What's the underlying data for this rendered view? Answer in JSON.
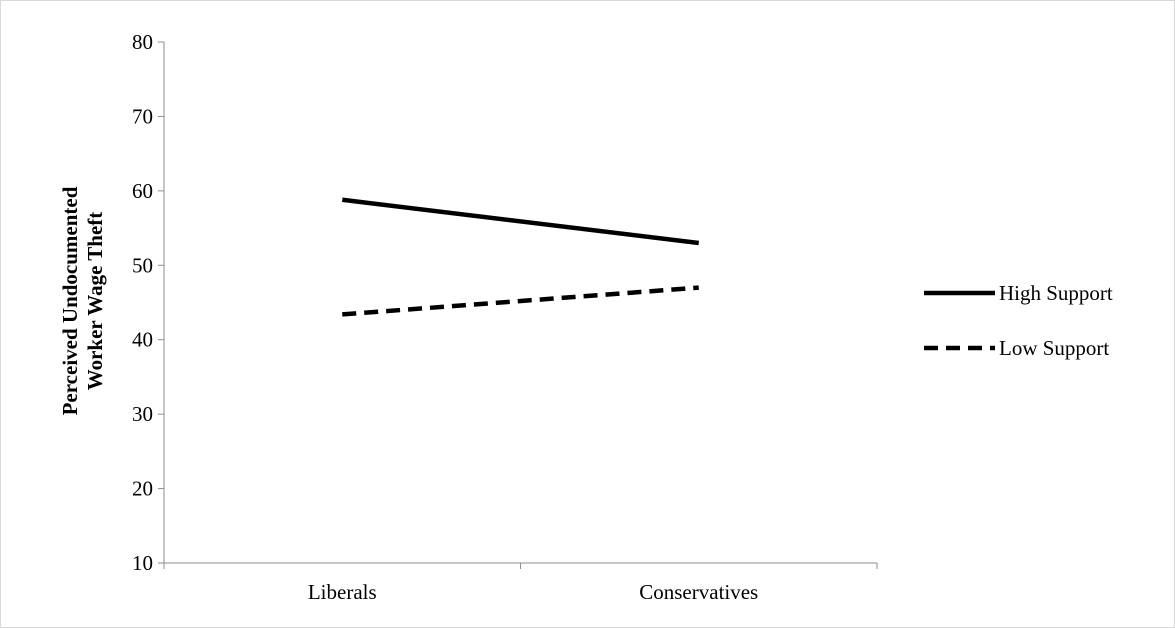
{
  "chart_data": {
    "type": "line",
    "title": "",
    "xlabel": "",
    "ylabel": [
      "Perceived Undocumented",
      "Worker Wage Theft"
    ],
    "categories": [
      "Liberals",
      "Conservatives"
    ],
    "ylim": [
      10,
      80
    ],
    "yticks": [
      10,
      20,
      30,
      40,
      50,
      60,
      70,
      80
    ],
    "grid": false,
    "legend_position": "right",
    "series": [
      {
        "name": "High Support",
        "values": [
          58.8,
          53.0
        ],
        "style": "solid",
        "color": "#000000"
      },
      {
        "name": "Low Support",
        "values": [
          43.4,
          47.0
        ],
        "style": "dashed",
        "color": "#000000"
      }
    ]
  }
}
